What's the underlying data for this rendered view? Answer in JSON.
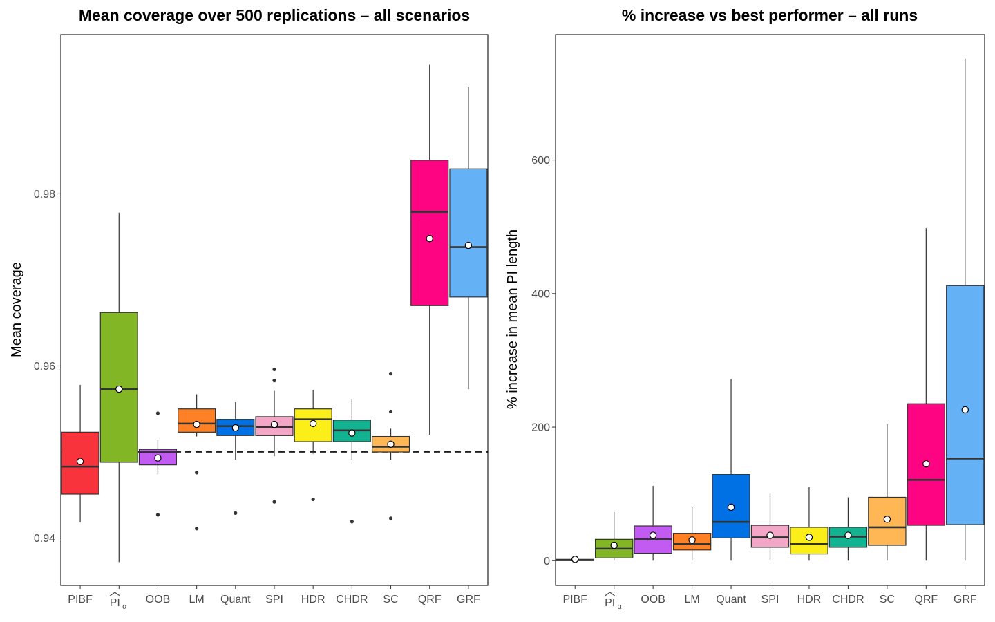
{
  "chart_data": [
    {
      "type": "box",
      "title": "Mean coverage over 500 replications – all scenarios",
      "xlabel": "",
      "ylabel": "Mean coverage",
      "ylim": [
        0.9345,
        0.9985
      ],
      "yticks": [
        0.94,
        0.96,
        0.98
      ],
      "ytick_labels": [
        "0.94",
        "0.96",
        "0.98"
      ],
      "reference_line": 0.95,
      "grid": false,
      "categories": [
        {
          "label": "PIBF",
          "sub": "",
          "color": "#F8333C",
          "q1": 0.9451,
          "median": 0.9483,
          "q3": 0.9523,
          "lower": 0.9418,
          "upper": 0.9578,
          "mean": 0.9489,
          "outliers": []
        },
        {
          "label": "PI",
          "sub": "α",
          "color": "#83B624",
          "q1": 0.9488,
          "median": 0.9573,
          "q3": 0.9662,
          "lower": 0.9372,
          "upper": 0.9778,
          "mean": 0.9573,
          "outliers": []
        },
        {
          "label": "OOB",
          "sub": "",
          "color": "#C15BF1",
          "q1": 0.9485,
          "median": 0.95,
          "q3": 0.9503,
          "lower": 0.9474,
          "upper": 0.9514,
          "mean": 0.9493,
          "outliers": [
            0.9545,
            0.9427
          ]
        },
        {
          "label": "LM",
          "sub": "",
          "color": "#FE8125",
          "q1": 0.9523,
          "median": 0.9533,
          "q3": 0.955,
          "lower": 0.9518,
          "upper": 0.9567,
          "mean": 0.9532,
          "outliers": [
            0.9476,
            0.9411
          ]
        },
        {
          "label": "Quant",
          "sub": "",
          "color": "#0070E5",
          "q1": 0.9519,
          "median": 0.953,
          "q3": 0.9538,
          "lower": 0.9491,
          "upper": 0.9558,
          "mean": 0.9528,
          "outliers": [
            0.9429
          ]
        },
        {
          "label": "SPI",
          "sub": "",
          "color": "#F3A6C6",
          "q1": 0.9519,
          "median": 0.9529,
          "q3": 0.9541,
          "lower": 0.9495,
          "upper": 0.9571,
          "mean": 0.9532,
          "outliers": [
            0.9596,
            0.9583,
            0.9442
          ]
        },
        {
          "label": "HDR",
          "sub": "",
          "color": "#FBEE19",
          "q1": 0.9512,
          "median": 0.9538,
          "q3": 0.955,
          "lower": 0.9498,
          "upper": 0.9572,
          "mean": 0.9533,
          "outliers": [
            0.9445
          ]
        },
        {
          "label": "CHDR",
          "sub": "",
          "color": "#12B391",
          "q1": 0.9512,
          "median": 0.9525,
          "q3": 0.9537,
          "lower": 0.9491,
          "upper": 0.9562,
          "mean": 0.9522,
          "outliers": [
            0.9419
          ]
        },
        {
          "label": "SC",
          "sub": "",
          "color": "#FFB655",
          "q1": 0.95,
          "median": 0.9506,
          "q3": 0.9518,
          "lower": 0.9491,
          "upper": 0.9527,
          "mean": 0.9509,
          "outliers": [
            0.9591,
            0.9547,
            0.9423
          ]
        },
        {
          "label": "QRF",
          "sub": "",
          "color": "#FF0482",
          "q1": 0.967,
          "median": 0.9779,
          "q3": 0.9839,
          "lower": 0.952,
          "upper": 0.995,
          "mean": 0.9748,
          "outliers": []
        },
        {
          "label": "GRF",
          "sub": "",
          "color": "#65B1F6",
          "q1": 0.968,
          "median": 0.9738,
          "q3": 0.9829,
          "lower": 0.9573,
          "upper": 0.9924,
          "mean": 0.974,
          "outliers": []
        }
      ]
    },
    {
      "type": "box",
      "title": "% increase vs best performer – all runs",
      "xlabel": "",
      "ylabel": "% increase in mean PI length",
      "ylim": [
        -37,
        788
      ],
      "yticks": [
        0,
        200,
        400,
        600
      ],
      "ytick_labels": [
        "0",
        "200",
        "400",
        "600"
      ],
      "grid": false,
      "categories": [
        {
          "label": "PIBF",
          "sub": "",
          "color": "#F8333C",
          "q1": 0,
          "median": 1,
          "q3": 2,
          "lower": 0,
          "upper": 3,
          "mean": 2,
          "outliers": []
        },
        {
          "label": "PI",
          "sub": "α",
          "color": "#83B624",
          "q1": 4,
          "median": 18,
          "q3": 32,
          "lower": 0,
          "upper": 73,
          "mean": 23,
          "outliers": []
        },
        {
          "label": "OOB",
          "sub": "",
          "color": "#C15BF1",
          "q1": 11,
          "median": 32,
          "q3": 52,
          "lower": 0,
          "upper": 112,
          "mean": 38,
          "outliers": []
        },
        {
          "label": "LM",
          "sub": "",
          "color": "#FE8125",
          "q1": 16,
          "median": 25,
          "q3": 41,
          "lower": 0,
          "upper": 80,
          "mean": 31,
          "outliers": []
        },
        {
          "label": "Quant",
          "sub": "",
          "color": "#0070E5",
          "q1": 34,
          "median": 58,
          "q3": 129,
          "lower": 0,
          "upper": 272,
          "mean": 80,
          "outliers": []
        },
        {
          "label": "SPI",
          "sub": "",
          "color": "#F3A6C6",
          "q1": 20,
          "median": 35,
          "q3": 53,
          "lower": 0,
          "upper": 100,
          "mean": 38,
          "outliers": []
        },
        {
          "label": "HDR",
          "sub": "",
          "color": "#FBEE19",
          "q1": 10,
          "median": 25,
          "q3": 50,
          "lower": 0,
          "upper": 110,
          "mean": 35,
          "outliers": []
        },
        {
          "label": "CHDR",
          "sub": "",
          "color": "#12B391",
          "q1": 20,
          "median": 36,
          "q3": 50,
          "lower": 0,
          "upper": 95,
          "mean": 38,
          "outliers": []
        },
        {
          "label": "SC",
          "sub": "",
          "color": "#FFB655",
          "q1": 23,
          "median": 50,
          "q3": 95,
          "lower": 0,
          "upper": 204,
          "mean": 62,
          "outliers": []
        },
        {
          "label": "QRF",
          "sub": "",
          "color": "#FF0482",
          "q1": 53,
          "median": 121,
          "q3": 235,
          "lower": 0,
          "upper": 498,
          "mean": 145,
          "outliers": []
        },
        {
          "label": "GRF",
          "sub": "",
          "color": "#65B1F6",
          "q1": 54,
          "median": 153,
          "q3": 412,
          "lower": 0,
          "upper": 752,
          "mean": 226,
          "outliers": []
        }
      ]
    }
  ]
}
